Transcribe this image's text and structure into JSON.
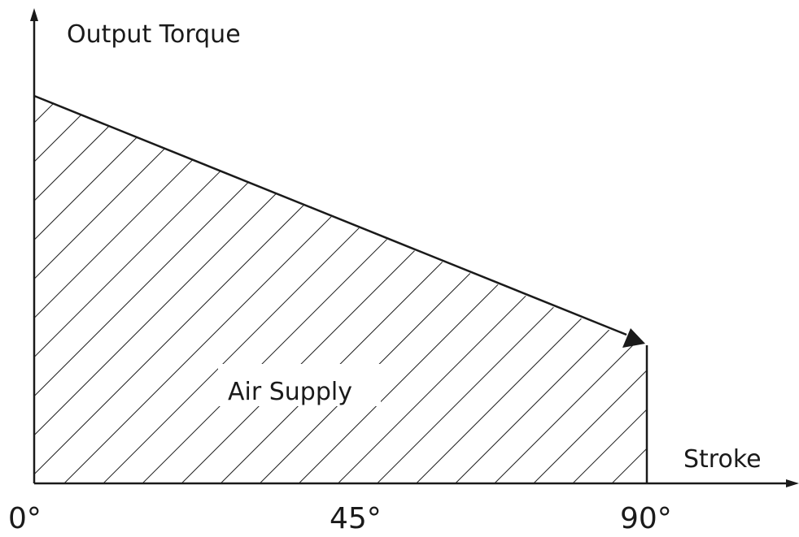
{
  "axes": {
    "y_label": "Output Torque",
    "x_label": "Stroke"
  },
  "region_label": "Air Supply",
  "x_ticks": [
    "0°",
    "45°",
    "90°"
  ]
}
